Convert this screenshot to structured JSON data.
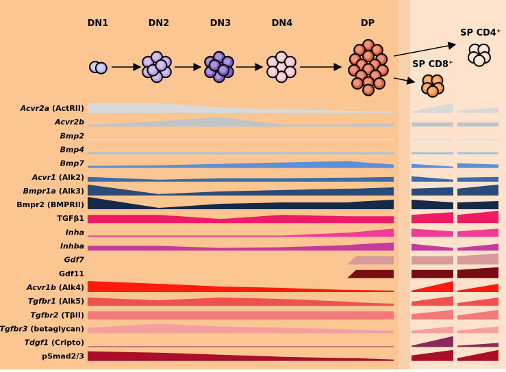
{
  "stages": [
    "DN1",
    "DN2",
    "DN3",
    "DN4",
    "DP"
  ],
  "sp_stages": [
    "SP CD4⁺",
    "SP CD8⁺"
  ],
  "genes": [
    {
      "gene": "Acvr2a",
      "alias": "(ActRII)",
      "italic": true
    },
    {
      "gene": "Acvr2b",
      "italic": true
    },
    {
      "gene": "Bmp2",
      "italic": true
    },
    {
      "gene": "Bmp4",
      "italic": true
    },
    {
      "gene": "Bmp7",
      "italic": true
    },
    {
      "gene": "Acvr1",
      "alias": "(Alk2)",
      "italic": true
    },
    {
      "gene": "Bmpr1a",
      "alias": "(Alk3)",
      "italic": true
    },
    {
      "gene": "Bmpr2",
      "alias": "(BMPRII)",
      "italic": false
    },
    {
      "gene": "TGFβ1",
      "italic": false
    },
    {
      "gene": "Inha",
      "italic": true
    },
    {
      "gene": "Inhba",
      "italic": true
    },
    {
      "gene": "Gdf7",
      "italic": true
    },
    {
      "gene": "Gdf11",
      "italic": false
    },
    {
      "gene": "Acvr1b",
      "alias": "(Alk4)",
      "italic": true
    },
    {
      "gene": "Tgfbr1",
      "alias": "(Alk5)",
      "italic": true
    },
    {
      "gene": "Tgfbr2",
      "alias": "(TβII)",
      "italic": true
    },
    {
      "gene": "Tgfbr3",
      "alias": "(betaglycan)",
      "italic": true
    },
    {
      "gene": "Tdgf1",
      "alias": "(Cripto)",
      "italic": true
    },
    {
      "gene": "pSmad2/3",
      "italic": false
    }
  ]
}
